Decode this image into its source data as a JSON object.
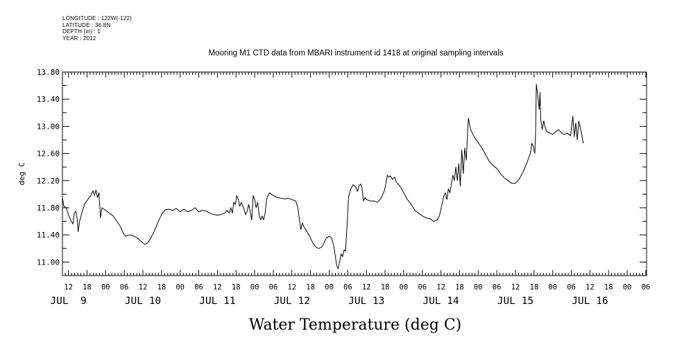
{
  "meta": {
    "longitude": "LONGITUDE : 122W(-122)",
    "latitude": "LATITUDE : 36.8N",
    "depth": "DEPTH (m) : 1",
    "year": "YEAR : 2012"
  },
  "chart_data": {
    "type": "line",
    "title": "Mooring M1 CTD data from MBARI instrument id 1418 at original sampling intervals",
    "xlabel": "Water Temperature (deg C)",
    "ylabel": "deg C",
    "ylim": [
      10.8,
      13.8
    ],
    "xlim": [
      8.42,
      16.26
    ],
    "y_ticks": [
      "11.00",
      "11.40",
      "11.80",
      "12.20",
      "12.60",
      "13.00",
      "13.40",
      "13.80"
    ],
    "x_hour_ticks": [
      {
        "x": 8.5,
        "label": "12"
      },
      {
        "x": 8.75,
        "label": "18"
      },
      {
        "x": 9.0,
        "label": "00"
      },
      {
        "x": 9.25,
        "label": "06"
      },
      {
        "x": 9.5,
        "label": "12"
      },
      {
        "x": 9.75,
        "label": "18"
      },
      {
        "x": 10.0,
        "label": "00"
      },
      {
        "x": 10.25,
        "label": "06"
      },
      {
        "x": 10.5,
        "label": "12"
      },
      {
        "x": 10.75,
        "label": "18"
      },
      {
        "x": 11.0,
        "label": "00"
      },
      {
        "x": 11.25,
        "label": "06"
      },
      {
        "x": 11.5,
        "label": "12"
      },
      {
        "x": 11.75,
        "label": "18"
      },
      {
        "x": 12.0,
        "label": "00"
      },
      {
        "x": 12.25,
        "label": "06"
      },
      {
        "x": 12.5,
        "label": "12"
      },
      {
        "x": 12.75,
        "label": "18"
      },
      {
        "x": 13.0,
        "label": "00"
      },
      {
        "x": 13.25,
        "label": "06"
      },
      {
        "x": 13.5,
        "label": "12"
      },
      {
        "x": 13.75,
        "label": "18"
      },
      {
        "x": 14.0,
        "label": "00"
      },
      {
        "x": 14.25,
        "label": "06"
      },
      {
        "x": 14.5,
        "label": "12"
      },
      {
        "x": 14.75,
        "label": "18"
      },
      {
        "x": 15.0,
        "label": "00"
      },
      {
        "x": 15.25,
        "label": "06"
      },
      {
        "x": 15.5,
        "label": "12"
      },
      {
        "x": 15.75,
        "label": "18"
      },
      {
        "x": 16.0,
        "label": "00"
      },
      {
        "x": 16.25,
        "label": "06"
      }
    ],
    "x_day_labels": [
      {
        "x": 8.5,
        "label": "JUL  9"
      },
      {
        "x": 9.5,
        "label": "JUL 10"
      },
      {
        "x": 10.5,
        "label": "JUL 11"
      },
      {
        "x": 11.5,
        "label": "JUL 12"
      },
      {
        "x": 12.5,
        "label": "JUL 13"
      },
      {
        "x": 13.5,
        "label": "JUL 14"
      },
      {
        "x": 14.5,
        "label": "JUL 15"
      },
      {
        "x": 15.5,
        "label": "JUL 16"
      }
    ],
    "series": [
      {
        "points": [
          [
            8.42,
            11.95
          ],
          [
            8.44,
            11.82
          ],
          [
            8.47,
            11.8
          ],
          [
            8.5,
            11.7
          ],
          [
            8.53,
            11.62
          ],
          [
            8.56,
            11.56
          ],
          [
            8.58,
            11.72
          ],
          [
            8.6,
            11.75
          ],
          [
            8.62,
            11.62
          ],
          [
            8.63,
            11.45
          ],
          [
            8.65,
            11.6
          ],
          [
            8.68,
            11.72
          ],
          [
            8.72,
            11.86
          ],
          [
            8.76,
            11.92
          ],
          [
            8.8,
            11.98
          ],
          [
            8.83,
            12.05
          ],
          [
            8.85,
            11.98
          ],
          [
            8.87,
            12.06
          ],
          [
            8.89,
            11.95
          ],
          [
            8.91,
            12.02
          ],
          [
            8.92,
            11.85
          ],
          [
            8.93,
            11.65
          ],
          [
            8.95,
            11.8
          ],
          [
            9.0,
            11.76
          ],
          [
            9.05,
            11.72
          ],
          [
            9.1,
            11.68
          ],
          [
            9.15,
            11.6
          ],
          [
            9.2,
            11.52
          ],
          [
            9.24,
            11.42
          ],
          [
            9.27,
            11.38
          ],
          [
            9.32,
            11.4
          ],
          [
            9.38,
            11.38
          ],
          [
            9.42,
            11.36
          ],
          [
            9.46,
            11.32
          ],
          [
            9.5,
            11.28
          ],
          [
            9.53,
            11.26
          ],
          [
            9.56,
            11.28
          ],
          [
            9.6,
            11.34
          ],
          [
            9.65,
            11.45
          ],
          [
            9.7,
            11.58
          ],
          [
            9.75,
            11.7
          ],
          [
            9.8,
            11.77
          ],
          [
            9.85,
            11.78
          ],
          [
            9.9,
            11.76
          ],
          [
            9.95,
            11.79
          ],
          [
            10.0,
            11.74
          ],
          [
            10.05,
            11.78
          ],
          [
            10.1,
            11.74
          ],
          [
            10.15,
            11.76
          ],
          [
            10.2,
            11.8
          ],
          [
            10.25,
            11.74
          ],
          [
            10.3,
            11.76
          ],
          [
            10.35,
            11.75
          ],
          [
            10.4,
            11.72
          ],
          [
            10.45,
            11.7
          ],
          [
            10.5,
            11.69
          ],
          [
            10.55,
            11.7
          ],
          [
            10.6,
            11.72
          ],
          [
            10.63,
            11.76
          ],
          [
            10.66,
            11.72
          ],
          [
            10.68,
            11.8
          ],
          [
            10.7,
            11.72
          ],
          [
            10.72,
            11.88
          ],
          [
            10.74,
            11.85
          ],
          [
            10.76,
            11.98
          ],
          [
            10.78,
            11.92
          ],
          [
            10.8,
            11.82
          ],
          [
            10.82,
            11.88
          ],
          [
            10.85,
            11.8
          ],
          [
            10.88,
            11.7
          ],
          [
            10.9,
            11.75
          ],
          [
            10.92,
            11.85
          ],
          [
            10.94,
            11.75
          ],
          [
            10.96,
            11.62
          ],
          [
            10.98,
            11.98
          ],
          [
            11.0,
            11.92
          ],
          [
            11.02,
            11.8
          ],
          [
            11.04,
            11.88
          ],
          [
            11.06,
            11.7
          ],
          [
            11.08,
            11.62
          ],
          [
            11.1,
            11.68
          ],
          [
            11.12,
            11.62
          ],
          [
            11.14,
            11.72
          ],
          [
            11.16,
            11.92
          ],
          [
            11.18,
            11.98
          ],
          [
            11.2,
            12.02
          ],
          [
            11.22,
            12.0
          ],
          [
            11.25,
            11.98
          ],
          [
            11.3,
            11.95
          ],
          [
            11.35,
            11.94
          ],
          [
            11.4,
            11.93
          ],
          [
            11.45,
            11.94
          ],
          [
            11.5,
            11.92
          ],
          [
            11.55,
            11.9
          ],
          [
            11.58,
            11.8
          ],
          [
            11.6,
            11.62
          ],
          [
            11.62,
            11.48
          ],
          [
            11.64,
            11.58
          ],
          [
            11.66,
            11.52
          ],
          [
            11.7,
            11.45
          ],
          [
            11.74,
            11.38
          ],
          [
            11.78,
            11.28
          ],
          [
            11.82,
            11.22
          ],
          [
            11.86,
            11.2
          ],
          [
            11.9,
            11.22
          ],
          [
            11.93,
            11.28
          ],
          [
            11.96,
            11.35
          ],
          [
            12.0,
            11.38
          ],
          [
            12.03,
            11.36
          ],
          [
            12.06,
            11.25
          ],
          [
            12.08,
            11.1
          ],
          [
            12.1,
            10.95
          ],
          [
            12.12,
            10.9
          ],
          [
            12.14,
            11.0
          ],
          [
            12.16,
            11.12
          ],
          [
            12.18,
            11.08
          ],
          [
            12.2,
            11.18
          ],
          [
            12.22,
            11.16
          ],
          [
            12.24,
            11.55
          ],
          [
            12.26,
            11.95
          ],
          [
            12.28,
            12.05
          ],
          [
            12.3,
            12.1
          ],
          [
            12.32,
            12.14
          ],
          [
            12.34,
            12.12
          ],
          [
            12.36,
            12.1
          ],
          [
            12.38,
            12.04
          ],
          [
            12.4,
            12.12
          ],
          [
            12.42,
            12.15
          ],
          [
            12.44,
            12.1
          ],
          [
            12.46,
            11.9
          ],
          [
            12.48,
            11.95
          ],
          [
            12.5,
            11.92
          ],
          [
            12.55,
            11.9
          ],
          [
            12.6,
            11.9
          ],
          [
            12.65,
            11.88
          ],
          [
            12.7,
            11.95
          ],
          [
            12.74,
            12.05
          ],
          [
            12.76,
            12.15
          ],
          [
            12.78,
            12.28
          ],
          [
            12.8,
            12.25
          ],
          [
            12.82,
            12.27
          ],
          [
            12.85,
            12.22
          ],
          [
            12.88,
            12.25
          ],
          [
            12.9,
            12.18
          ],
          [
            12.95,
            12.12
          ],
          [
            13.0,
            12.02
          ],
          [
            13.05,
            11.92
          ],
          [
            13.1,
            11.85
          ],
          [
            13.15,
            11.76
          ],
          [
            13.2,
            11.72
          ],
          [
            13.25,
            11.68
          ],
          [
            13.3,
            11.65
          ],
          [
            13.35,
            11.64
          ],
          [
            13.4,
            11.6
          ],
          [
            13.45,
            11.62
          ],
          [
            13.48,
            11.68
          ],
          [
            13.5,
            11.78
          ],
          [
            13.52,
            11.88
          ],
          [
            13.54,
            11.98
          ],
          [
            13.56,
            12.02
          ],
          [
            13.58,
            11.92
          ],
          [
            13.6,
            12.08
          ],
          [
            13.62,
            12.02
          ],
          [
            13.64,
            12.15
          ],
          [
            13.66,
            12.28
          ],
          [
            13.68,
            12.2
          ],
          [
            13.7,
            12.4
          ],
          [
            13.72,
            12.2
          ],
          [
            13.74,
            12.45
          ],
          [
            13.76,
            12.12
          ],
          [
            13.78,
            12.65
          ],
          [
            13.8,
            12.3
          ],
          [
            13.82,
            12.68
          ],
          [
            13.84,
            12.5
          ],
          [
            13.86,
            12.95
          ],
          [
            13.87,
            13.12
          ],
          [
            13.88,
            13.05
          ],
          [
            13.9,
            12.95
          ],
          [
            13.93,
            12.88
          ],
          [
            13.96,
            12.82
          ],
          [
            14.0,
            12.76
          ],
          [
            14.05,
            12.68
          ],
          [
            14.1,
            12.58
          ],
          [
            14.15,
            12.48
          ],
          [
            14.2,
            12.42
          ],
          [
            14.25,
            12.38
          ],
          [
            14.3,
            12.3
          ],
          [
            14.35,
            12.24
          ],
          [
            14.4,
            12.2
          ],
          [
            14.45,
            12.16
          ],
          [
            14.5,
            12.16
          ],
          [
            14.55,
            12.22
          ],
          [
            14.6,
            12.32
          ],
          [
            14.65,
            12.45
          ],
          [
            14.7,
            12.6
          ],
          [
            14.72,
            12.75
          ],
          [
            14.74,
            12.7
          ],
          [
            14.76,
            12.6
          ],
          [
            14.77,
            12.9
          ],
          [
            14.78,
            13.62
          ],
          [
            14.8,
            13.45
          ],
          [
            14.82,
            13.25
          ],
          [
            14.83,
            13.5
          ],
          [
            14.84,
            13.1
          ],
          [
            14.86,
            12.95
          ],
          [
            14.88,
            13.08
          ],
          [
            14.9,
            12.98
          ],
          [
            14.92,
            12.92
          ],
          [
            14.96,
            12.9
          ],
          [
            15.0,
            12.88
          ],
          [
            15.04,
            12.92
          ],
          [
            15.08,
            12.95
          ],
          [
            15.12,
            12.9
          ],
          [
            15.16,
            12.88
          ],
          [
            15.2,
            12.9
          ],
          [
            15.24,
            12.86
          ],
          [
            15.27,
            13.15
          ],
          [
            15.29,
            12.85
          ],
          [
            15.31,
            13.05
          ],
          [
            15.33,
            12.8
          ],
          [
            15.35,
            13.08
          ],
          [
            15.37,
            12.98
          ],
          [
            15.39,
            12.88
          ],
          [
            15.41,
            12.75
          ]
        ]
      }
    ]
  }
}
